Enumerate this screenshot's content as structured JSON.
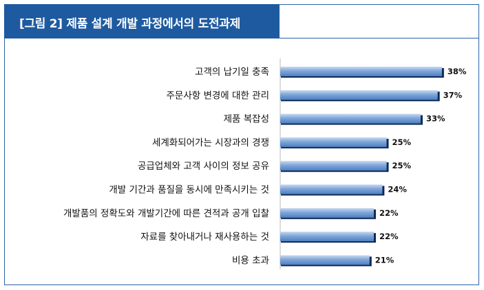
{
  "figure_title": "[그림 2] 제품 설계 개발 과정에서의 도전과제",
  "colors": {
    "title_bar": "#1e5aa0",
    "bar_light": "#c9daf1",
    "bar_mid": "#7fa6d8",
    "bar_dark": "#4d7fc1",
    "bar_shadow": "#0f2a55"
  },
  "chart_data": {
    "type": "bar",
    "orientation": "horizontal",
    "title": "[그림 2] 제품 설계 개발 과정에서의 도전과제",
    "categories": [
      "고객의 납기일 충족",
      "주문사항 변경에 대한 관리",
      "제품 복잡성",
      "세계화되어가는 시장과의 경쟁",
      "공급업체와 고객 사이의 정보 공유",
      "개발 기간과 품질을 동시에 만족시키는 것",
      "개발품의 정확도와 개발기간에 따른 견적과 공개 입찰",
      "자료를 찾아내거나 재사용하는 것",
      "비용 초과"
    ],
    "values": [
      38,
      37,
      33,
      25,
      25,
      24,
      22,
      22,
      21
    ],
    "value_labels": [
      "38%",
      "37%",
      "33%",
      "25%",
      "25%",
      "24%",
      "22%",
      "22%",
      "21%"
    ],
    "unit": "%",
    "xlim": [
      0,
      40
    ],
    "grid": false,
    "legend": "none"
  }
}
